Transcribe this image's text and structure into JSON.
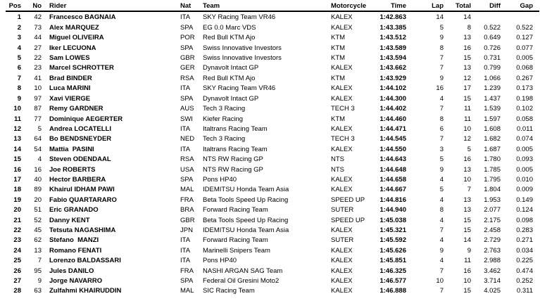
{
  "colors": {
    "background": "#ffffff",
    "text": "#000000",
    "header_rule": "#000000"
  },
  "table": {
    "columns": [
      {
        "key": "pos",
        "label": "Pos"
      },
      {
        "key": "no",
        "label": "No"
      },
      {
        "key": "rider",
        "label": "Rider"
      },
      {
        "key": "nat",
        "label": "Nat"
      },
      {
        "key": "team",
        "label": "Team"
      },
      {
        "key": "motorcycle",
        "label": "Motorcycle"
      },
      {
        "key": "time",
        "label": "Time"
      },
      {
        "key": "lap",
        "label": "Lap"
      },
      {
        "key": "total",
        "label": "Total"
      },
      {
        "key": "diff",
        "label": "Diff"
      },
      {
        "key": "gap",
        "label": "Gap"
      }
    ],
    "rows": [
      {
        "pos": "1",
        "no": "42",
        "rider": "Francesco BAGNAIA",
        "nat": "ITA",
        "team": "SKY Racing Team VR46",
        "motorcycle": "KALEX",
        "time": "1:42.863",
        "lap": "14",
        "total": "14",
        "diff": "",
        "gap": ""
      },
      {
        "pos": "2",
        "no": "73",
        "rider": "Alex MARQUEZ",
        "nat": "SPA",
        "team": "EG 0.0 Marc VDS",
        "motorcycle": "KALEX",
        "time": "1:43.385",
        "lap": "5",
        "total": "8",
        "diff": "0.522",
        "gap": "0.522"
      },
      {
        "pos": "3",
        "no": "44",
        "rider": "Miguel OLIVEIRA",
        "nat": "POR",
        "team": "Red Bull KTM Ajo",
        "motorcycle": "KTM",
        "time": "1:43.512",
        "lap": "9",
        "total": "13",
        "diff": "0.649",
        "gap": "0.127"
      },
      {
        "pos": "4",
        "no": "27",
        "rider": "Iker LECUONA",
        "nat": "SPA",
        "team": "Swiss Innovative Investors",
        "motorcycle": "KTM",
        "time": "1:43.589",
        "lap": "8",
        "total": "16",
        "diff": "0.726",
        "gap": "0.077"
      },
      {
        "pos": "5",
        "no": "22",
        "rider": "Sam LOWES",
        "nat": "GBR",
        "team": "Swiss Innovative Investors",
        "motorcycle": "KTM",
        "time": "1:43.594",
        "lap": "7",
        "total": "15",
        "diff": "0.731",
        "gap": "0.005"
      },
      {
        "pos": "6",
        "no": "23",
        "rider": "Marcel SCHROTTER",
        "nat": "GER",
        "team": "Dynavolt Intact GP",
        "motorcycle": "KALEX",
        "time": "1:43.662",
        "lap": "7",
        "total": "13",
        "diff": "0.799",
        "gap": "0.068"
      },
      {
        "pos": "7",
        "no": "41",
        "rider": "Brad BINDER",
        "nat": "RSA",
        "team": "Red Bull KTM Ajo",
        "motorcycle": "KTM",
        "time": "1:43.929",
        "lap": "9",
        "total": "12",
        "diff": "1.066",
        "gap": "0.267"
      },
      {
        "pos": "8",
        "no": "10",
        "rider": "Luca MARINI",
        "nat": "ITA",
        "team": "SKY Racing Team VR46",
        "motorcycle": "KALEX",
        "time": "1:44.102",
        "lap": "16",
        "total": "17",
        "diff": "1.239",
        "gap": "0.173"
      },
      {
        "pos": "9",
        "no": "97",
        "rider": "Xavi VIERGE",
        "nat": "SPA",
        "team": "Dynavolt Intact GP",
        "motorcycle": "KALEX",
        "time": "1:44.300",
        "lap": "4",
        "total": "15",
        "diff": "1.437",
        "gap": "0.198"
      },
      {
        "pos": "10",
        "no": "87",
        "rider": "Remy GARDNER",
        "nat": "AUS",
        "team": "Tech 3 Racing",
        "motorcycle": "TECH 3",
        "time": "1:44.402",
        "lap": "7",
        "total": "11",
        "diff": "1.539",
        "gap": "0.102"
      },
      {
        "pos": "11",
        "no": "77",
        "rider": "Dominique AEGERTER",
        "nat": "SWI",
        "team": "Kiefer Racing",
        "motorcycle": "KTM",
        "time": "1:44.460",
        "lap": "8",
        "total": "11",
        "diff": "1.597",
        "gap": "0.058"
      },
      {
        "pos": "12",
        "no": "5",
        "rider": "Andrea LOCATELLI",
        "nat": "ITA",
        "team": "Italtrans Racing Team",
        "motorcycle": "KALEX",
        "time": "1:44.471",
        "lap": "6",
        "total": "10",
        "diff": "1.608",
        "gap": "0.011"
      },
      {
        "pos": "13",
        "no": "64",
        "rider": "Bo BENDSNEYDER",
        "nat": "NED",
        "team": "Tech 3 Racing",
        "motorcycle": "TECH 3",
        "time": "1:44.545",
        "lap": "7",
        "total": "12",
        "diff": "1.682",
        "gap": "0.074"
      },
      {
        "pos": "14",
        "no": "54",
        "rider": "Mattia  PASINI",
        "nat": "ITA",
        "team": "Italtrans Racing Team",
        "motorcycle": "KALEX",
        "time": "1:44.550",
        "lap": "3",
        "total": "5",
        "diff": "1.687",
        "gap": "0.005"
      },
      {
        "pos": "15",
        "no": "4",
        "rider": "Steven ODENDAAL",
        "nat": "RSA",
        "team": "NTS RW Racing GP",
        "motorcycle": "NTS",
        "time": "1:44.643",
        "lap": "5",
        "total": "16",
        "diff": "1.780",
        "gap": "0.093"
      },
      {
        "pos": "16",
        "no": "16",
        "rider": "Joe ROBERTS",
        "nat": "USA",
        "team": "NTS RW Racing GP",
        "motorcycle": "NTS",
        "time": "1:44.648",
        "lap": "9",
        "total": "13",
        "diff": "1.785",
        "gap": "0.005"
      },
      {
        "pos": "17",
        "no": "40",
        "rider": "Hector BARBERA",
        "nat": "SPA",
        "team": "Pons HP40",
        "motorcycle": "KALEX",
        "time": "1:44.658",
        "lap": "4",
        "total": "10",
        "diff": "1.795",
        "gap": "0.010"
      },
      {
        "pos": "18",
        "no": "89",
        "rider": "Khairul IDHAM PAWI",
        "nat": "MAL",
        "team": "IDEMITSU Honda Team Asia",
        "motorcycle": "KALEX",
        "time": "1:44.667",
        "lap": "5",
        "total": "7",
        "diff": "1.804",
        "gap": "0.009"
      },
      {
        "pos": "19",
        "no": "20",
        "rider": "Fabio QUARTARARO",
        "nat": "FRA",
        "team": "Beta Tools Speed Up Racing",
        "motorcycle": "SPEED UP",
        "time": "1:44.816",
        "lap": "4",
        "total": "13",
        "diff": "1.953",
        "gap": "0.149"
      },
      {
        "pos": "20",
        "no": "51",
        "rider": "Eric GRANADO",
        "nat": "BRA",
        "team": "Forward Racing Team",
        "motorcycle": "SUTER",
        "time": "1:44.940",
        "lap": "8",
        "total": "13",
        "diff": "2.077",
        "gap": "0.124"
      },
      {
        "pos": "21",
        "no": "52",
        "rider": "Danny KENT",
        "nat": "GBR",
        "team": "Beta Tools Speed Up Racing",
        "motorcycle": "SPEED UP",
        "time": "1:45.038",
        "lap": "4",
        "total": "15",
        "diff": "2.175",
        "gap": "0.098"
      },
      {
        "pos": "22",
        "no": "45",
        "rider": "Tetsuta NAGASHIMA",
        "nat": "JPN",
        "team": "IDEMITSU Honda Team Asia",
        "motorcycle": "KALEX",
        "time": "1:45.321",
        "lap": "7",
        "total": "15",
        "diff": "2.458",
        "gap": "0.283"
      },
      {
        "pos": "23",
        "no": "62",
        "rider": "Stefano  MANZI",
        "nat": "ITA",
        "team": "Forward Racing Team",
        "motorcycle": "SUTER",
        "time": "1:45.592",
        "lap": "4",
        "total": "14",
        "diff": "2.729",
        "gap": "0.271"
      },
      {
        "pos": "24",
        "no": "13",
        "rider": "Romano FENATI",
        "nat": "ITA",
        "team": "Marinelli Snipers Team",
        "motorcycle": "KALEX",
        "time": "1:45.626",
        "lap": "9",
        "total": "9",
        "diff": "2.763",
        "gap": "0.034"
      },
      {
        "pos": "25",
        "no": "7",
        "rider": "Lorenzo BALDASSARI",
        "nat": "ITA",
        "team": "Pons HP40",
        "motorcycle": "KALEX",
        "time": "1:45.851",
        "lap": "4",
        "total": "11",
        "diff": "2.988",
        "gap": "0.225"
      },
      {
        "pos": "26",
        "no": "95",
        "rider": "Jules DANILO",
        "nat": "FRA",
        "team": "NASHI ARGAN SAG Team",
        "motorcycle": "KALEX",
        "time": "1:46.325",
        "lap": "7",
        "total": "16",
        "diff": "3.462",
        "gap": "0.474"
      },
      {
        "pos": "27",
        "no": "9",
        "rider": "Jorge NAVARRO",
        "nat": "SPA",
        "team": "Federal Oil Gresini Moto2",
        "motorcycle": "KALEX",
        "time": "1:46.577",
        "lap": "10",
        "total": "10",
        "diff": "3.714",
        "gap": "0.252"
      },
      {
        "pos": "28",
        "no": "63",
        "rider": "Zulfahmi KHAIRUDDIN",
        "nat": "MAL",
        "team": "SIC Racing Team",
        "motorcycle": "KALEX",
        "time": "1:46.888",
        "lap": "7",
        "total": "15",
        "diff": "4.025",
        "gap": "0.311"
      }
    ]
  }
}
